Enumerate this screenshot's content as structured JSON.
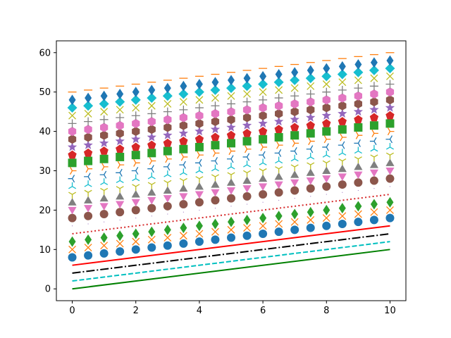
{
  "chart_data": {
    "type": "line",
    "title": "",
    "xlabel": "",
    "ylabel": "",
    "x": [
      0,
      0.5,
      1,
      1.5,
      2,
      2.5,
      3,
      3.5,
      4,
      4.5,
      5,
      5.5,
      6,
      6.5,
      7,
      7.5,
      8,
      8.5,
      9,
      9.5,
      10
    ],
    "xlim": [
      -0.5,
      10.5
    ],
    "ylim": [
      -3,
      63
    ],
    "x_ticks": [
      0,
      2,
      4,
      6,
      8,
      10
    ],
    "y_ticks": [
      0,
      10,
      20,
      30,
      40,
      50,
      60
    ],
    "x_tick_labels": [
      "0",
      "2",
      "4",
      "6",
      "8",
      "10"
    ],
    "y_tick_labels": [
      "0",
      "10",
      "20",
      "30",
      "40",
      "50",
      "60"
    ],
    "grid": false,
    "slope": 1,
    "series": [
      {
        "intercept": 0,
        "style": "solid line",
        "marker": "none",
        "color": "#008000"
      },
      {
        "intercept": 2,
        "style": "dashed line",
        "marker": "none",
        "color": "#00bfbf"
      },
      {
        "intercept": 4,
        "style": "dash-dot line",
        "marker": "none",
        "color": "#000000"
      },
      {
        "intercept": 6,
        "style": "solid line",
        "marker": "none",
        "color": "#ff0000"
      },
      {
        "intercept": 8,
        "style": "markers",
        "marker": "circle",
        "color": "#1f77b4"
      },
      {
        "intercept": 10,
        "style": "markers",
        "marker": "x",
        "color": "#ff7f0e"
      },
      {
        "intercept": 12,
        "style": "markers",
        "marker": "thin-diamond",
        "color": "#2ca02c"
      },
      {
        "intercept": 14,
        "style": "dotted line",
        "marker": "none",
        "color": "#d62728"
      },
      {
        "intercept": 16,
        "style": "markers",
        "marker": "pixel",
        "color": "#9467bd"
      },
      {
        "intercept": 18,
        "style": "markers",
        "marker": "circle",
        "color": "#8c564b"
      },
      {
        "intercept": 20,
        "style": "markers",
        "marker": "triangle-down",
        "color": "#e377c2"
      },
      {
        "intercept": 22,
        "style": "markers",
        "marker": "triangle-up",
        "color": "#7f7f7f"
      },
      {
        "intercept": 24,
        "style": "markers",
        "marker": "tri-down",
        "color": "#bcbd22"
      },
      {
        "intercept": 26,
        "style": "markers",
        "marker": "tri-up",
        "color": "#17becf"
      },
      {
        "intercept": 28,
        "style": "markers",
        "marker": "tri-left",
        "color": "#1f77b4"
      },
      {
        "intercept": 30,
        "style": "markers",
        "marker": "tri-right",
        "color": "#ff7f0e"
      },
      {
        "intercept": 32,
        "style": "markers",
        "marker": "square",
        "color": "#2ca02c"
      },
      {
        "intercept": 34,
        "style": "markers",
        "marker": "pentagon",
        "color": "#d62728"
      },
      {
        "intercept": 36,
        "style": "markers",
        "marker": "star",
        "color": "#9467bd"
      },
      {
        "intercept": 38,
        "style": "markers",
        "marker": "hexagon",
        "color": "#8c564b"
      },
      {
        "intercept": 40,
        "style": "markers",
        "marker": "hexagon",
        "color": "#e377c2"
      },
      {
        "intercept": 42,
        "style": "markers",
        "marker": "plus",
        "color": "#7f7f7f"
      },
      {
        "intercept": 44,
        "style": "markers",
        "marker": "x",
        "color": "#bcbd22"
      },
      {
        "intercept": 46,
        "style": "markers",
        "marker": "diamond",
        "color": "#17becf"
      },
      {
        "intercept": 48,
        "style": "markers",
        "marker": "thin-diamond",
        "color": "#1f77b4"
      },
      {
        "intercept": 50,
        "style": "markers",
        "marker": "hline",
        "color": "#ff7f0e"
      }
    ]
  }
}
